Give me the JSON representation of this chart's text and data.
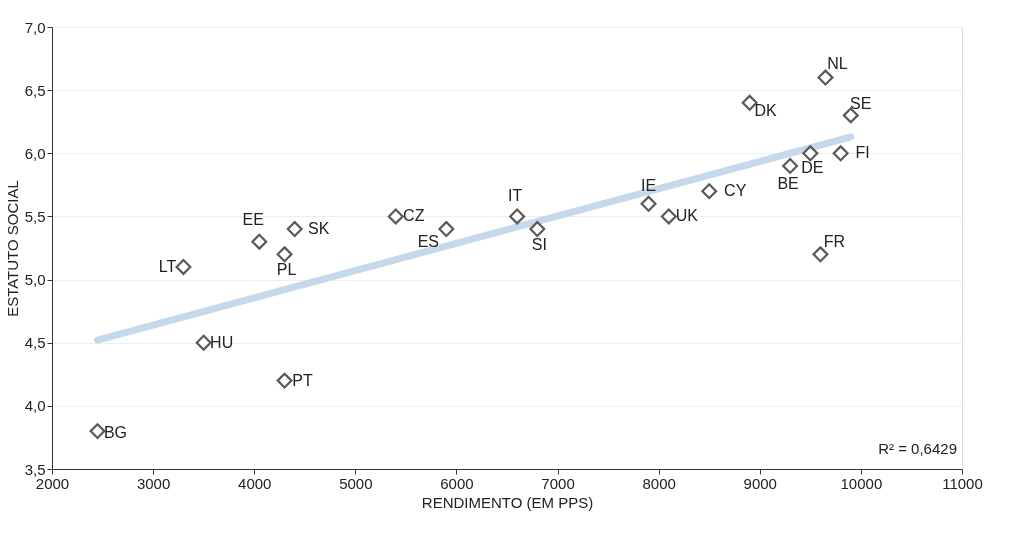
{
  "chart_data": {
    "type": "scatter",
    "xlabel": "RENDIMENTO (EM PPS)",
    "ylabel": "ESTATUTO SOCIAL",
    "xlim": [
      2000,
      11000
    ],
    "xticks": [
      2000,
      3000,
      4000,
      5000,
      6000,
      7000,
      8000,
      9000,
      10000,
      11000
    ],
    "ylim": [
      3.5,
      7.0
    ],
    "yticks": [
      {
        "value": 3.5,
        "label": "3,5"
      },
      {
        "value": 4.0,
        "label": "4,0"
      },
      {
        "value": 4.5,
        "label": "4,5"
      },
      {
        "value": 5.0,
        "label": "5,0"
      },
      {
        "value": 5.5,
        "label": "5,5"
      },
      {
        "value": 6.0,
        "label": "6,0"
      },
      {
        "value": 6.5,
        "label": "6,5"
      },
      {
        "value": 7.0,
        "label": "7,0"
      }
    ],
    "grid": "y",
    "series": [
      {
        "type": "scatter",
        "marker": "diamond",
        "color": "#595959",
        "x": [
          2450,
          3300,
          3500,
          4050,
          4300,
          4400,
          4300,
          5400,
          5900,
          6600,
          6800,
          7900,
          8100,
          8500,
          8900,
          9300,
          9500,
          9650,
          9800,
          9900,
          9600
        ],
        "values": [
          3.8,
          5.1,
          4.5,
          5.3,
          5.2,
          5.4,
          4.2,
          5.5,
          5.4,
          5.5,
          5.4,
          5.6,
          5.5,
          5.7,
          6.4,
          5.9,
          6.0,
          6.6,
          6.0,
          6.3,
          5.2
        ]
      },
      {
        "type": "line",
        "color": "#c5d8ec",
        "x": [
          2450,
          9900
        ],
        "values": [
          4.52,
          6.13
        ]
      }
    ],
    "annotations": [
      {
        "text": "BG",
        "x": 2450,
        "y": 3.8
      },
      {
        "text": "LT",
        "x": 3300,
        "y": 5.1
      },
      {
        "text": "HU",
        "x": 3500,
        "y": 4.5
      },
      {
        "text": "EE",
        "x": 4050,
        "y": 5.3
      },
      {
        "text": "PL",
        "x": 4300,
        "y": 5.2
      },
      {
        "text": "SK",
        "x": 4400,
        "y": 5.4
      },
      {
        "text": "PT",
        "x": 4300,
        "y": 4.2
      },
      {
        "text": "CZ",
        "x": 5400,
        "y": 5.5
      },
      {
        "text": "ES",
        "x": 5900,
        "y": 5.4
      },
      {
        "text": "IT",
        "x": 6600,
        "y": 5.5
      },
      {
        "text": "SI",
        "x": 6800,
        "y": 5.4
      },
      {
        "text": "IE",
        "x": 7900,
        "y": 5.6
      },
      {
        "text": "UK",
        "x": 8100,
        "y": 5.5
      },
      {
        "text": "CY",
        "x": 8500,
        "y": 5.7
      },
      {
        "text": "DK",
        "x": 8900,
        "y": 6.4
      },
      {
        "text": "BE",
        "x": 9300,
        "y": 5.9
      },
      {
        "text": "DE",
        "x": 9500,
        "y": 6.0
      },
      {
        "text": "NL",
        "x": 9650,
        "y": 6.6
      },
      {
        "text": "FI",
        "x": 9800,
        "y": 6.0
      },
      {
        "text": "SE",
        "x": 9900,
        "y": 6.3
      },
      {
        "text": "FR",
        "x": 9600,
        "y": 5.2
      },
      "R² = 0,6429"
    ]
  }
}
